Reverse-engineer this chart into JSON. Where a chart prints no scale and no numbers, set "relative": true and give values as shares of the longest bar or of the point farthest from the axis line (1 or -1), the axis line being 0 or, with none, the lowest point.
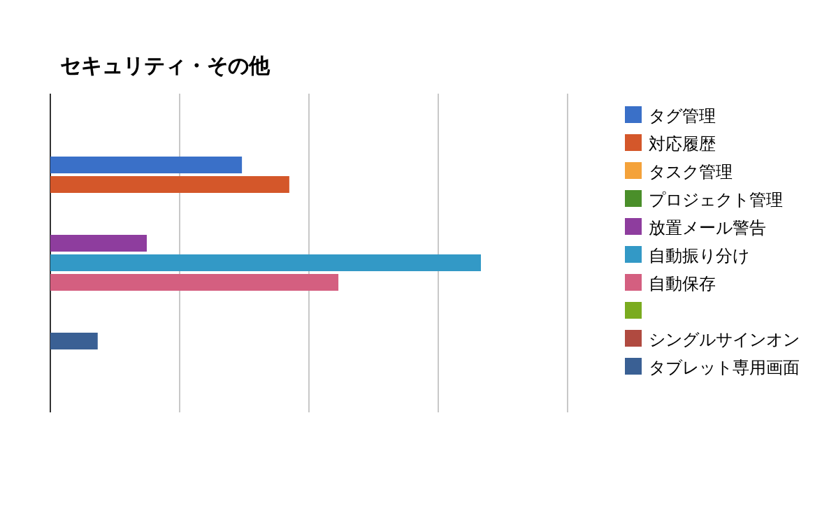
{
  "chart_data": {
    "type": "bar",
    "orientation": "horizontal",
    "relative": true,
    "title": "セキュリティ・その他",
    "categories": [
      null
    ],
    "grid": "x",
    "legend": "right",
    "series": [
      {
        "name": "タグ管理",
        "color": "#3a70c8",
        "values": [
          0.445
        ]
      },
      {
        "name": "対応履歴",
        "color": "#d4572a",
        "values": [
          0.555
        ]
      },
      {
        "name": "タスク管理",
        "color": "#f4a23a",
        "values": [
          null
        ]
      },
      {
        "name": "プロジェクト管理",
        "color": "#4a8f2a",
        "values": [
          null
        ]
      },
      {
        "name": "放置メール警告",
        "color": "#8e3d9e",
        "values": [
          0.224
        ]
      },
      {
        "name": "自動振り分け",
        "color": "#3399c6",
        "values": [
          1
        ]
      },
      {
        "name": "自動保存",
        "color": "#d45f80",
        "values": [
          0.669
        ]
      },
      {
        "color": "#7aab1f",
        "values": [
          null
        ]
      },
      {
        "name": "シングルサインオン",
        "color": "#b04a40",
        "values": [
          null
        ]
      },
      {
        "name": "タブレット専用画面",
        "color": "#3a6094",
        "values": [
          0.11
        ]
      }
    ]
  }
}
